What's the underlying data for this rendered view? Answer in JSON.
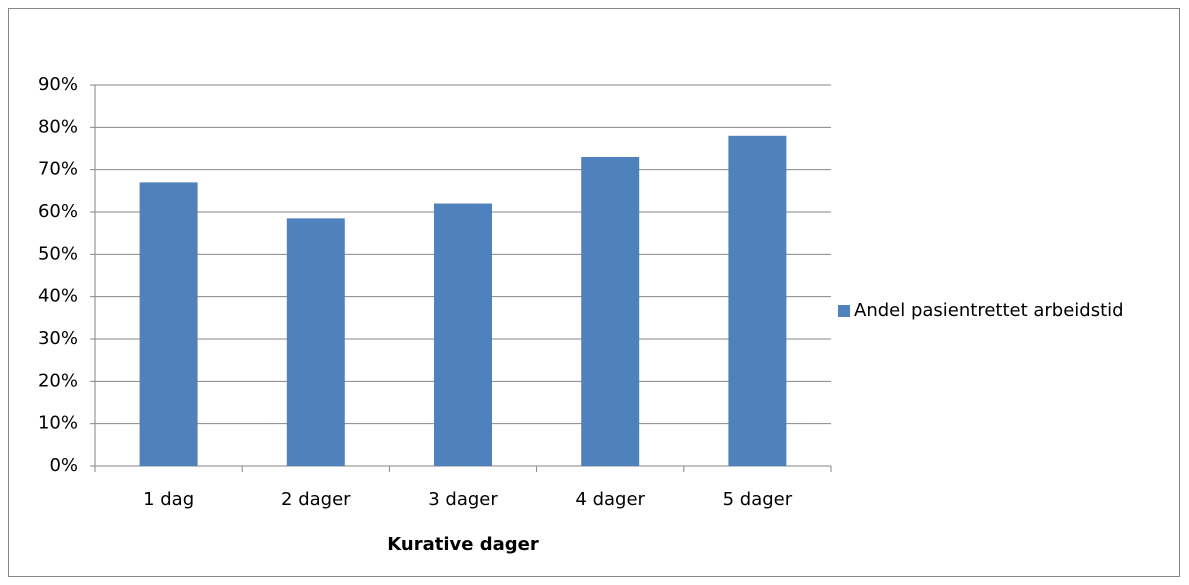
{
  "chart_data": {
    "type": "bar",
    "x_label": "Kurative dager",
    "categories": [
      "1 dag",
      "2 dager",
      "3 dager",
      "4 dager",
      "5 dager"
    ],
    "series": [
      {
        "name": "Andel pasientrettet arbeidstid",
        "color": "#4f81bd",
        "values": [
          67,
          58.5,
          62,
          73,
          78
        ]
      }
    ],
    "ylim": [
      0,
      90
    ],
    "yticks": [
      {
        "value": 0,
        "label": "0%"
      },
      {
        "value": 10,
        "label": "10%"
      },
      {
        "value": 20,
        "label": "20%"
      },
      {
        "value": 30,
        "label": "30%"
      },
      {
        "value": 40,
        "label": "40%"
      },
      {
        "value": 50,
        "label": "50%"
      },
      {
        "value": 60,
        "label": "60%"
      },
      {
        "value": 70,
        "label": "70%"
      },
      {
        "value": 80,
        "label": "80%"
      },
      {
        "value": 90,
        "label": "90%"
      }
    ],
    "grid": true,
    "legend": "right"
  }
}
